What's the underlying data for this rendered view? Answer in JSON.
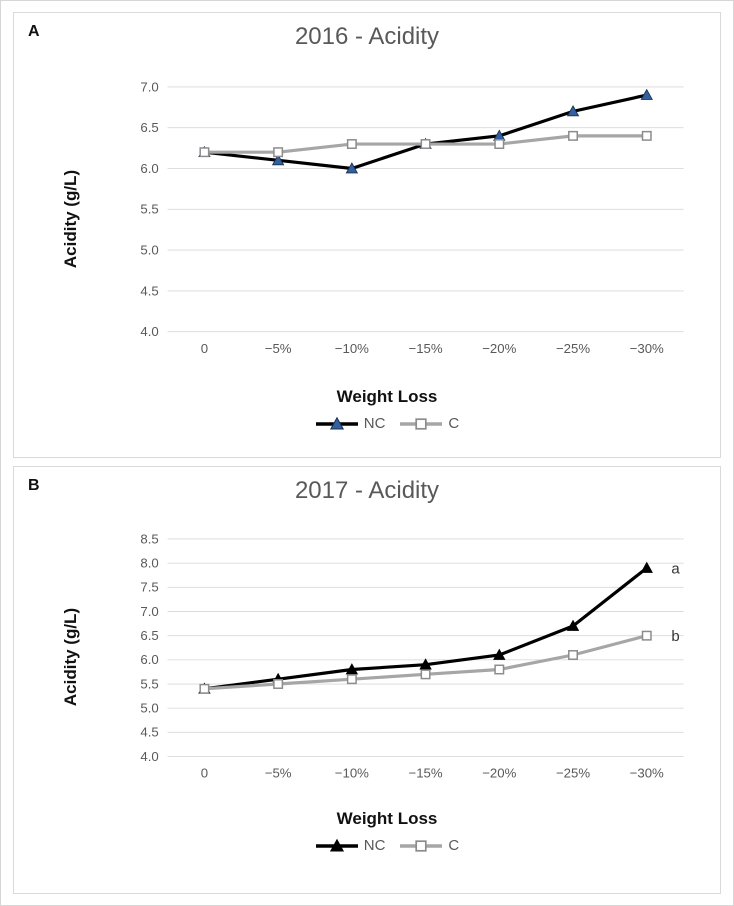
{
  "figure": {
    "description": "Two stacked line charts comparing acidity vs weight loss for NC and C treatments in 2016 and 2017"
  },
  "colors": {
    "grid": "#d9d9d9",
    "tick_text": "#595959",
    "title_text": "#595959",
    "axis_title_text": "#111111",
    "nc_line": "#000000",
    "c_line": "#a6a6a6",
    "nc_marker_fill_2016": "#35609f",
    "nc_marker_stroke_2016": "#16304f",
    "nc_marker_fill_2017": "#000000",
    "c_marker_fill": "#ffffff",
    "c_marker_stroke": "#8c8c8c"
  },
  "chart_data": [
    {
      "type": "line",
      "panel_label": "A",
      "title": "2016 - Acidity",
      "xlabel": "Weight Loss",
      "ylabel": "Acidity (g/L)",
      "categories": [
        "0",
        "−5%",
        "−10%",
        "−15%",
        "−20%",
        "−25%",
        "−30%"
      ],
      "ylim": [
        4.0,
        7.0
      ],
      "ytick_labels": [
        "4.0",
        "4.5",
        "5.0",
        "5.5",
        "6.0",
        "6.5",
        "7.0"
      ],
      "grid": "horizontal",
      "legend_position": "bottom",
      "series": [
        {
          "name": "NC",
          "values": [
            6.2,
            6.1,
            6.0,
            6.3,
            6.4,
            6.7,
            6.9
          ],
          "line_color": "#000000",
          "marker": "triangle",
          "marker_fill": "#35609f",
          "marker_stroke": "#16304f"
        },
        {
          "name": "C",
          "values": [
            6.2,
            6.2,
            6.3,
            6.3,
            6.3,
            6.4,
            6.4
          ],
          "line_color": "#a6a6a6",
          "marker": "square-open",
          "marker_fill": "#ffffff",
          "marker_stroke": "#8c8c8c"
        }
      ],
      "annotations": []
    },
    {
      "type": "line",
      "panel_label": "B",
      "title": "2017 - Acidity",
      "xlabel": "Weight Loss",
      "ylabel": "Acidity (g/L)",
      "categories": [
        "0",
        "−5%",
        "−10%",
        "−15%",
        "−20%",
        "−25%",
        "−30%"
      ],
      "ylim": [
        4.0,
        8.5
      ],
      "ytick_labels": [
        "4.0",
        "4.5",
        "5.0",
        "5.5",
        "6.0",
        "6.5",
        "7.0",
        "7.5",
        "8.0",
        "8.5"
      ],
      "grid": "horizontal",
      "legend_position": "bottom",
      "series": [
        {
          "name": "NC",
          "values": [
            5.4,
            5.6,
            5.8,
            5.9,
            6.1,
            6.7,
            7.9
          ],
          "line_color": "#000000",
          "marker": "triangle",
          "marker_fill": "#000000",
          "marker_stroke": "#000000"
        },
        {
          "name": "C",
          "values": [
            5.4,
            5.5,
            5.6,
            5.7,
            5.8,
            6.1,
            6.5
          ],
          "line_color": "#a6a6a6",
          "marker": "square-open",
          "marker_fill": "#ffffff",
          "marker_stroke": "#8c8c8c"
        }
      ],
      "annotations": [
        {
          "text": "a",
          "series": 0,
          "point": 6
        },
        {
          "text": "b",
          "series": 1,
          "point": 6
        }
      ]
    }
  ]
}
